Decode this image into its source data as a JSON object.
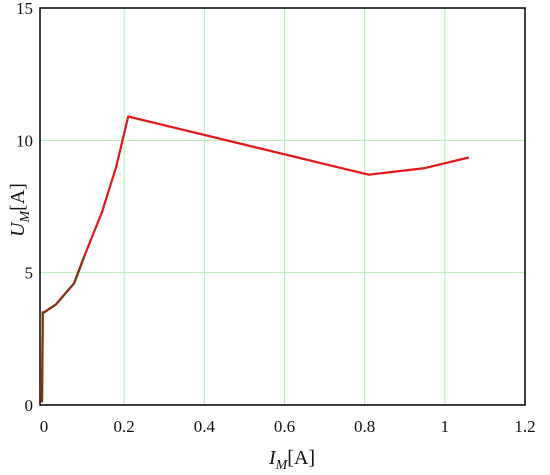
{
  "chart_data": {
    "type": "line",
    "title": "",
    "xlabel": {
      "var": "I",
      "sub": "M",
      "unit": "[A]"
    },
    "ylabel": {
      "var": "U",
      "sub": "M",
      "unit": "[A]"
    },
    "xlim": [
      -0.01,
      1.2
    ],
    "ylim": [
      0,
      15
    ],
    "x_ticks": [
      0,
      0.2,
      0.4,
      0.6,
      0.8,
      1.0,
      1.2
    ],
    "x_tick_labels": [
      "0",
      "0.2",
      "0.4",
      "0.6",
      "0.8",
      "1",
      "1.2"
    ],
    "y_ticks": [
      0,
      5,
      10,
      15
    ],
    "y_tick_labels": [
      "0",
      "5",
      "10",
      "15"
    ],
    "grid": true,
    "colors": {
      "grid": "#b8ecb8",
      "series_main": "#e01818",
      "series_start": "#6a3a10",
      "frame": "#000000"
    },
    "series": [
      {
        "x": [
          -0.005,
          -0.003,
          0.0,
          0.03,
          0.075,
          0.1,
          0.145,
          0.18,
          0.21,
          0.81,
          0.95,
          1.06
        ],
        "y": [
          0.1,
          3.5,
          3.5,
          3.8,
          4.6,
          5.6,
          7.3,
          9.0,
          10.9,
          8.7,
          8.95,
          9.35
        ]
      }
    ]
  }
}
